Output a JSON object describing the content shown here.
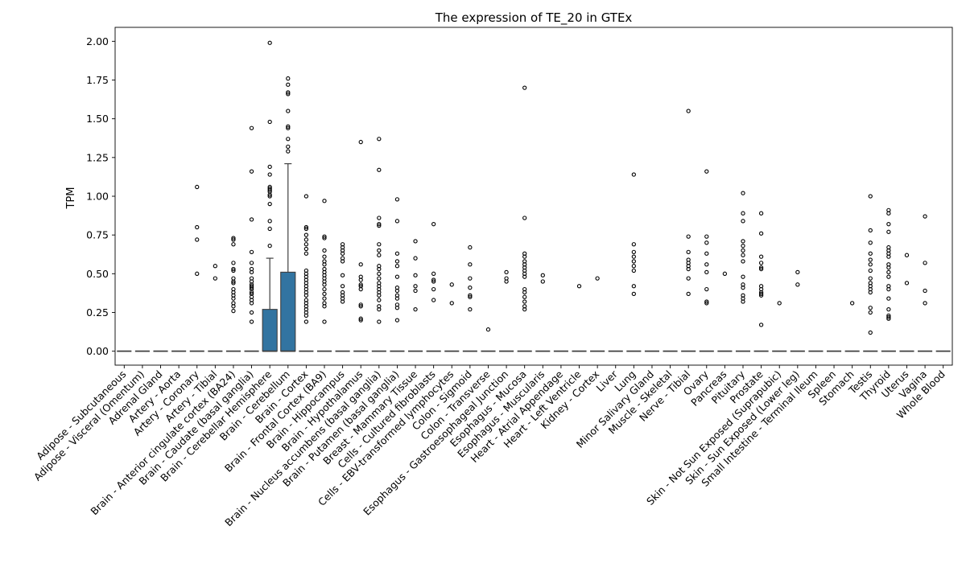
{
  "chart_data": {
    "type": "box",
    "title": "The expression of TE_20 in GTEx",
    "xlabel": "",
    "ylabel": "TPM",
    "ylim": [
      -0.09,
      2.09
    ],
    "yticks": [
      "0.00",
      "0.25",
      "0.50",
      "0.75",
      "1.00",
      "1.25",
      "1.50",
      "1.75",
      "2.00"
    ],
    "grid": false,
    "box_color": "#3274a1",
    "categories": [
      "Adipose - Subcutaneous",
      "Adipose - Visceral (Omentum)",
      "Adrenal Gland",
      "Artery - Aorta",
      "Artery - Coronary",
      "Artery - Tibial",
      "Brain - Anterior cingulate cortex (BA24)",
      "Brain - Caudate (basal ganglia)",
      "Brain - Cerebellar Hemisphere",
      "Brain - Cerebellum",
      "Brain - Cortex",
      "Brain - Frontal Cortex (BA9)",
      "Brain - Hippocampus",
      "Brain - Hypothalamus",
      "Brain - Nucleus accumbens (basal ganglia)",
      "Brain - Putamen (basal ganglia)",
      "Breast - Mammary Tissue",
      "Cells - Cultured fibroblasts",
      "Cells - EBV-transformed lymphocytes",
      "Colon - Sigmoid",
      "Colon - Transverse",
      "Esophagus - Gastroesophageal Junction",
      "Esophagus - Mucosa",
      "Esophagus - Muscularis",
      "Heart - Atrial Appendage",
      "Heart - Left Ventricle",
      "Kidney - Cortex",
      "Liver",
      "Lung",
      "Minor Salivary Gland",
      "Muscle - Skeletal",
      "Nerve - Tibial",
      "Ovary",
      "Pancreas",
      "Pituitary",
      "Prostate",
      "Skin - Not Sun Exposed (Suprapubic)",
      "Skin - Sun Exposed (Lower leg)",
      "Small Intestine - Terminal Ileum",
      "Spleen",
      "Stomach",
      "Testis",
      "Thyroid",
      "Uterus",
      "Vagina",
      "Whole Blood"
    ],
    "boxes": [
      {
        "q1": 0,
        "median": 0,
        "q3": 0,
        "whislo": 0,
        "whishi": 0,
        "fliers": []
      },
      {
        "q1": 0,
        "median": 0,
        "q3": 0,
        "whislo": 0,
        "whishi": 0,
        "fliers": []
      },
      {
        "q1": 0,
        "median": 0,
        "q3": 0,
        "whislo": 0,
        "whishi": 0,
        "fliers": []
      },
      {
        "q1": 0,
        "median": 0,
        "q3": 0,
        "whislo": 0,
        "whishi": 0,
        "fliers": []
      },
      {
        "q1": 0,
        "median": 0,
        "q3": 0,
        "whislo": 0,
        "whishi": 0,
        "fliers": [
          1.06,
          0.8,
          0.72,
          0.5
        ]
      },
      {
        "q1": 0,
        "median": 0,
        "q3": 0,
        "whislo": 0,
        "whishi": 0,
        "fliers": [
          0.55,
          0.47
        ]
      },
      {
        "q1": 0,
        "median": 0,
        "q3": 0,
        "whislo": 0,
        "whishi": 0,
        "fliers": [
          0.73,
          0.72,
          0.69,
          0.57,
          0.53,
          0.52,
          0.47,
          0.45,
          0.44,
          0.4,
          0.38,
          0.36,
          0.34,
          0.31,
          0.29,
          0.26
        ]
      },
      {
        "q1": 0,
        "median": 0,
        "q3": 0,
        "whislo": 0,
        "whishi": 0,
        "fliers": [
          1.44,
          1.16,
          0.85,
          0.64,
          0.57,
          0.53,
          0.51,
          0.47,
          0.45,
          0.43,
          0.42,
          0.41,
          0.4,
          0.38,
          0.37,
          0.35,
          0.33,
          0.31,
          0.25,
          0.19
        ]
      },
      {
        "q1": 0,
        "median": 0,
        "q3": 0.27,
        "whislo": 0,
        "whishi": 0.6,
        "fliers": [
          1.99,
          1.48,
          1.19,
          1.14,
          1.06,
          1.05,
          1.04,
          1.03,
          1.01,
          1.0,
          0.95,
          0.84,
          0.79,
          0.68
        ]
      },
      {
        "q1": 0,
        "median": 0,
        "q3": 0.51,
        "whislo": 0,
        "whishi": 1.21,
        "fliers": [
          1.76,
          1.72,
          1.67,
          1.66,
          1.55,
          1.45,
          1.44,
          1.37,
          1.32,
          1.29
        ]
      },
      {
        "q1": 0,
        "median": 0,
        "q3": 0,
        "whislo": 0,
        "whishi": 0,
        "fliers": [
          1.0,
          0.8,
          0.79,
          0.75,
          0.72,
          0.69,
          0.66,
          0.63,
          0.52,
          0.5,
          0.48,
          0.46,
          0.44,
          0.42,
          0.4,
          0.38,
          0.36,
          0.33,
          0.31,
          0.29,
          0.27,
          0.25,
          0.23,
          0.19
        ]
      },
      {
        "q1": 0,
        "median": 0,
        "q3": 0,
        "whislo": 0,
        "whishi": 0,
        "fliers": [
          0.97,
          0.74,
          0.73,
          0.65,
          0.61,
          0.58,
          0.56,
          0.53,
          0.51,
          0.49,
          0.47,
          0.45,
          0.43,
          0.4,
          0.37,
          0.34,
          0.31,
          0.29,
          0.19
        ]
      },
      {
        "q1": 0,
        "median": 0,
        "q3": 0,
        "whislo": 0,
        "whishi": 0,
        "fliers": [
          0.69,
          0.67,
          0.65,
          0.63,
          0.6,
          0.58,
          0.49,
          0.42,
          0.38,
          0.36,
          0.34,
          0.32
        ]
      },
      {
        "q1": 0,
        "median": 0,
        "q3": 0,
        "whislo": 0,
        "whishi": 0,
        "fliers": [
          1.35,
          0.56,
          0.48,
          0.46,
          0.43,
          0.42,
          0.4,
          0.3,
          0.29,
          0.21,
          0.2
        ]
      },
      {
        "q1": 0,
        "median": 0,
        "q3": 0,
        "whislo": 0,
        "whishi": 0,
        "fliers": [
          1.37,
          1.17,
          0.86,
          0.82,
          0.81,
          0.69,
          0.65,
          0.62,
          0.55,
          0.53,
          0.5,
          0.47,
          0.44,
          0.42,
          0.4,
          0.38,
          0.36,
          0.33,
          0.29,
          0.27,
          0.19
        ]
      },
      {
        "q1": 0,
        "median": 0,
        "q3": 0,
        "whislo": 0,
        "whishi": 0,
        "fliers": [
          0.98,
          0.84,
          0.63,
          0.58,
          0.55,
          0.48,
          0.41,
          0.39,
          0.36,
          0.34,
          0.3,
          0.28,
          0.2
        ]
      },
      {
        "q1": 0,
        "median": 0,
        "q3": 0,
        "whislo": 0,
        "whishi": 0,
        "fliers": [
          0.71,
          0.6,
          0.49,
          0.42,
          0.39,
          0.27
        ]
      },
      {
        "q1": 0,
        "median": 0,
        "q3": 0,
        "whislo": 0,
        "whishi": 0,
        "fliers": [
          0.82,
          0.5,
          0.46,
          0.45,
          0.4,
          0.33
        ]
      },
      {
        "q1": 0,
        "median": 0,
        "q3": 0,
        "whislo": 0,
        "whishi": 0,
        "fliers": [
          0.43,
          0.31
        ]
      },
      {
        "q1": 0,
        "median": 0,
        "q3": 0,
        "whislo": 0,
        "whishi": 0,
        "fliers": [
          0.67,
          0.56,
          0.47,
          0.41,
          0.36,
          0.35,
          0.27
        ]
      },
      {
        "q1": 0,
        "median": 0,
        "q3": 0,
        "whislo": 0,
        "whishi": 0,
        "fliers": [
          0.14
        ]
      },
      {
        "q1": 0,
        "median": 0,
        "q3": 0,
        "whislo": 0,
        "whishi": 0,
        "fliers": [
          0.51,
          0.47,
          0.45
        ]
      },
      {
        "q1": 0,
        "median": 0,
        "q3": 0,
        "whislo": 0,
        "whishi": 0,
        "fliers": [
          1.7,
          0.86,
          0.63,
          0.61,
          0.58,
          0.56,
          0.54,
          0.52,
          0.5,
          0.48,
          0.4,
          0.38,
          0.35,
          0.32,
          0.29,
          0.27
        ]
      },
      {
        "q1": 0,
        "median": 0,
        "q3": 0,
        "whislo": 0,
        "whishi": 0,
        "fliers": [
          0.49,
          0.45
        ]
      },
      {
        "q1": 0,
        "median": 0,
        "q3": 0,
        "whislo": 0,
        "whishi": 0,
        "fliers": []
      },
      {
        "q1": 0,
        "median": 0,
        "q3": 0,
        "whislo": 0,
        "whishi": 0,
        "fliers": [
          0.42
        ]
      },
      {
        "q1": 0,
        "median": 0,
        "q3": 0,
        "whislo": 0,
        "whishi": 0,
        "fliers": [
          0.47
        ]
      },
      {
        "q1": 0,
        "median": 0,
        "q3": 0,
        "whislo": 0,
        "whishi": 0,
        "fliers": []
      },
      {
        "q1": 0,
        "median": 0,
        "q3": 0,
        "whislo": 0,
        "whishi": 0,
        "fliers": [
          1.14,
          0.69,
          0.64,
          0.61,
          0.58,
          0.55,
          0.52,
          0.42,
          0.37
        ]
      },
      {
        "q1": 0,
        "median": 0,
        "q3": 0,
        "whislo": 0,
        "whishi": 0,
        "fliers": []
      },
      {
        "q1": 0,
        "median": 0,
        "q3": 0,
        "whislo": 0,
        "whishi": 0,
        "fliers": []
      },
      {
        "q1": 0,
        "median": 0,
        "q3": 0,
        "whislo": 0,
        "whishi": 0,
        "fliers": [
          1.55,
          0.74,
          0.64,
          0.59,
          0.57,
          0.55,
          0.53,
          0.47,
          0.37
        ]
      },
      {
        "q1": 0,
        "median": 0,
        "q3": 0,
        "whislo": 0,
        "whishi": 0,
        "fliers": [
          1.16,
          0.74,
          0.7,
          0.63,
          0.56,
          0.51,
          0.4,
          0.32,
          0.31
        ]
      },
      {
        "q1": 0,
        "median": 0,
        "q3": 0,
        "whislo": 0,
        "whishi": 0,
        "fliers": [
          0.5
        ]
      },
      {
        "q1": 0,
        "median": 0,
        "q3": 0,
        "whislo": 0,
        "whishi": 0,
        "fliers": [
          1.02,
          0.89,
          0.84,
          0.71,
          0.68,
          0.65,
          0.62,
          0.58,
          0.48,
          0.43,
          0.41,
          0.36,
          0.34,
          0.32
        ]
      },
      {
        "q1": 0,
        "median": 0,
        "q3": 0,
        "whislo": 0,
        "whishi": 0,
        "fliers": [
          0.89,
          0.76,
          0.61,
          0.57,
          0.54,
          0.53,
          0.42,
          0.4,
          0.38,
          0.37,
          0.36,
          0.17
        ]
      },
      {
        "q1": 0,
        "median": 0,
        "q3": 0,
        "whislo": 0,
        "whishi": 0,
        "fliers": [
          0.31
        ]
      },
      {
        "q1": 0,
        "median": 0,
        "q3": 0,
        "whislo": 0,
        "whishi": 0,
        "fliers": [
          0.51,
          0.43
        ]
      },
      {
        "q1": 0,
        "median": 0,
        "q3": 0,
        "whislo": 0,
        "whishi": 0,
        "fliers": []
      },
      {
        "q1": 0,
        "median": 0,
        "q3": 0,
        "whislo": 0,
        "whishi": 0,
        "fliers": []
      },
      {
        "q1": 0,
        "median": 0,
        "q3": 0,
        "whislo": 0,
        "whishi": 0,
        "fliers": [
          0.31
        ]
      },
      {
        "q1": 0,
        "median": 0,
        "q3": 0,
        "whislo": 0,
        "whishi": 0,
        "fliers": [
          1.0,
          0.78,
          0.7,
          0.63,
          0.59,
          0.56,
          0.52,
          0.47,
          0.44,
          0.42,
          0.4,
          0.38,
          0.28,
          0.25,
          0.12
        ]
      },
      {
        "q1": 0,
        "median": 0,
        "q3": 0,
        "whislo": 0,
        "whishi": 0,
        "fliers": [
          0.91,
          0.89,
          0.82,
          0.77,
          0.67,
          0.65,
          0.63,
          0.61,
          0.56,
          0.54,
          0.51,
          0.48,
          0.42,
          0.4,
          0.34,
          0.27,
          0.23,
          0.22,
          0.21
        ]
      },
      {
        "q1": 0,
        "median": 0,
        "q3": 0,
        "whislo": 0,
        "whishi": 0,
        "fliers": [
          0.62,
          0.44
        ]
      },
      {
        "q1": 0,
        "median": 0,
        "q3": 0,
        "whislo": 0,
        "whishi": 0,
        "fliers": [
          0.87,
          0.57,
          0.39,
          0.31
        ]
      },
      {
        "q1": 0,
        "median": 0,
        "q3": 0,
        "whislo": 0,
        "whishi": 0,
        "fliers": []
      }
    ]
  }
}
